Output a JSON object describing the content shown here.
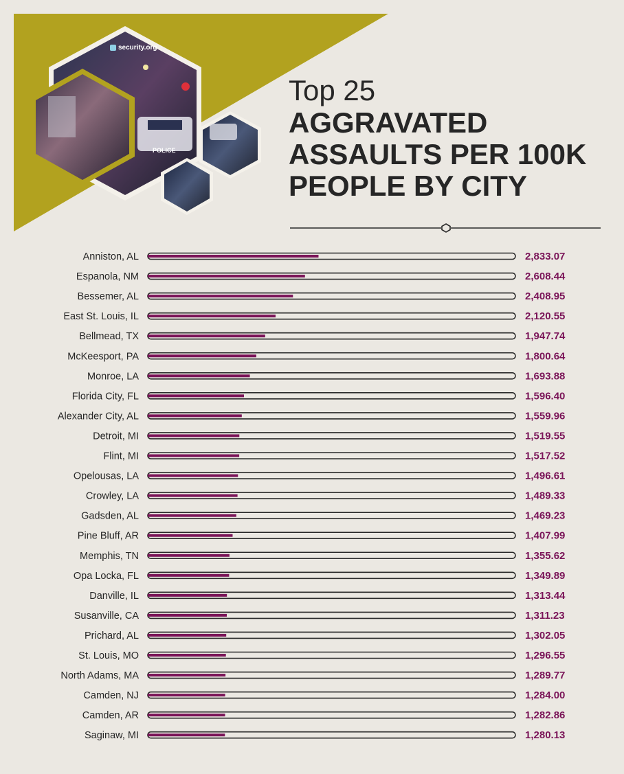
{
  "brand": {
    "logo_text": "security.org"
  },
  "photo": {
    "caption": "POLICE"
  },
  "header": {
    "title_top": "Top 25",
    "title_main": "AGGRAVATED\nASSAULTS PER 100K\nPEOPLE BY CITY"
  },
  "colors": {
    "background": "#ebe8e2",
    "banner": "#b2a21f",
    "bar_fill": "#7a1458",
    "value_text": "#7a1458",
    "track_outline": "#2a2a2a",
    "label_text": "#262626"
  },
  "chart_data": {
    "type": "bar",
    "orientation": "horizontal",
    "title": "Top 25 AGGRAVATED ASSAULTS PER 100K PEOPLE BY CITY",
    "categories": [
      "Anniston, AL",
      "Espanola, NM",
      "Bessemer, AL",
      "East St. Louis, IL",
      "Bellmead, TX",
      "McKeesport, PA",
      "Monroe, LA",
      "Florida City, FL",
      "Alexander City, AL",
      "Detroit, MI",
      "Flint, MI",
      "Opelousas, LA",
      "Crowley, LA",
      "Gadsden, AL",
      "Pine Bluff, AR",
      "Memphis, TN",
      "Opa Locka, FL",
      "Danville, IL",
      "Susanville, CA",
      "Prichard, AL",
      "St. Louis, MO",
      "North Adams, MA",
      "Camden, NJ",
      "Camden, AR",
      "Saginaw, MI"
    ],
    "values": [
      2833.07,
      2608.44,
      2408.95,
      2120.55,
      1947.74,
      1800.64,
      1693.88,
      1596.4,
      1559.96,
      1519.55,
      1517.52,
      1496.61,
      1489.33,
      1469.23,
      1407.99,
      1355.62,
      1349.89,
      1313.44,
      1311.23,
      1302.05,
      1296.55,
      1289.77,
      1284.0,
      1282.86,
      1280.13
    ],
    "value_labels": [
      "2,833.07",
      "2,608.44",
      "2,408.95",
      "2,120.55",
      "1,947.74",
      "1,800.64",
      "1,693.88",
      "1,596.40",
      "1,559.96",
      "1,519.55",
      "1,517.52",
      "1,496.61",
      "1,489.33",
      "1,469.23",
      "1,407.99",
      "1,355.62",
      "1,349.89",
      "1,313.44",
      "1,311.23",
      "1,302.05",
      "1,296.55",
      "1,289.77",
      "1,284.00",
      "1,282.86",
      "1,280.13"
    ],
    "xlim": [
      0,
      6100
    ],
    "grid": false,
    "legend": "none"
  }
}
